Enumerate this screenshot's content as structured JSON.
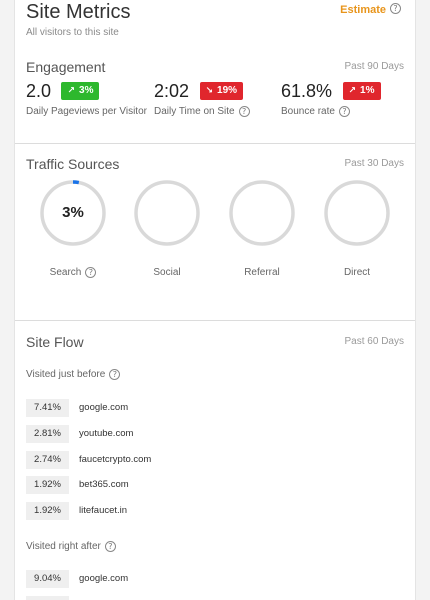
{
  "header": {
    "title": "Site Metrics",
    "subtitle": "All visitors to this site",
    "estimate_label": "Estimate"
  },
  "engagement": {
    "title": "Engagement",
    "period": "Past 90 Days",
    "metrics": [
      {
        "value": "2.0",
        "change": "3%",
        "direction": "up",
        "label": "Daily Pageviews per Visitor"
      },
      {
        "value": "2:02",
        "change": "19%",
        "direction": "down",
        "label": "Daily Time on Site"
      },
      {
        "value": "61.8%",
        "change": "1%",
        "direction": "up",
        "label": "Bounce rate"
      }
    ]
  },
  "traffic": {
    "title": "Traffic Sources",
    "period": "Past 30 Days",
    "sources": [
      {
        "label": "Search",
        "value": "3%",
        "fraction": 0.03
      },
      {
        "label": "Social",
        "value": "",
        "fraction": 0
      },
      {
        "label": "Referral",
        "value": "",
        "fraction": 0
      },
      {
        "label": "Direct",
        "value": "",
        "fraction": 0
      }
    ]
  },
  "flow": {
    "title": "Site Flow",
    "period": "Past 60 Days",
    "before_heading": "Visited just before",
    "before": [
      {
        "pct": "7.41%",
        "site": "google.com"
      },
      {
        "pct": "2.81%",
        "site": "youtube.com"
      },
      {
        "pct": "2.74%",
        "site": "faucetcrypto.com"
      },
      {
        "pct": "1.92%",
        "site": "bet365.com"
      },
      {
        "pct": "1.92%",
        "site": "litefaucet.in"
      }
    ],
    "after_heading": "Visited right after",
    "after": [
      {
        "pct": "9.04%",
        "site": "google.com"
      }
    ]
  },
  "colors": {
    "up": "#2db82d",
    "down": "#e0262d",
    "ring_track": "#d9d9d9",
    "ring_fill": "#1a73e8",
    "estimate": "#e8951c"
  },
  "icons": {
    "help": "question-circle-icon",
    "trend_up": "trend-up-icon",
    "trend_down": "trend-down-icon"
  }
}
